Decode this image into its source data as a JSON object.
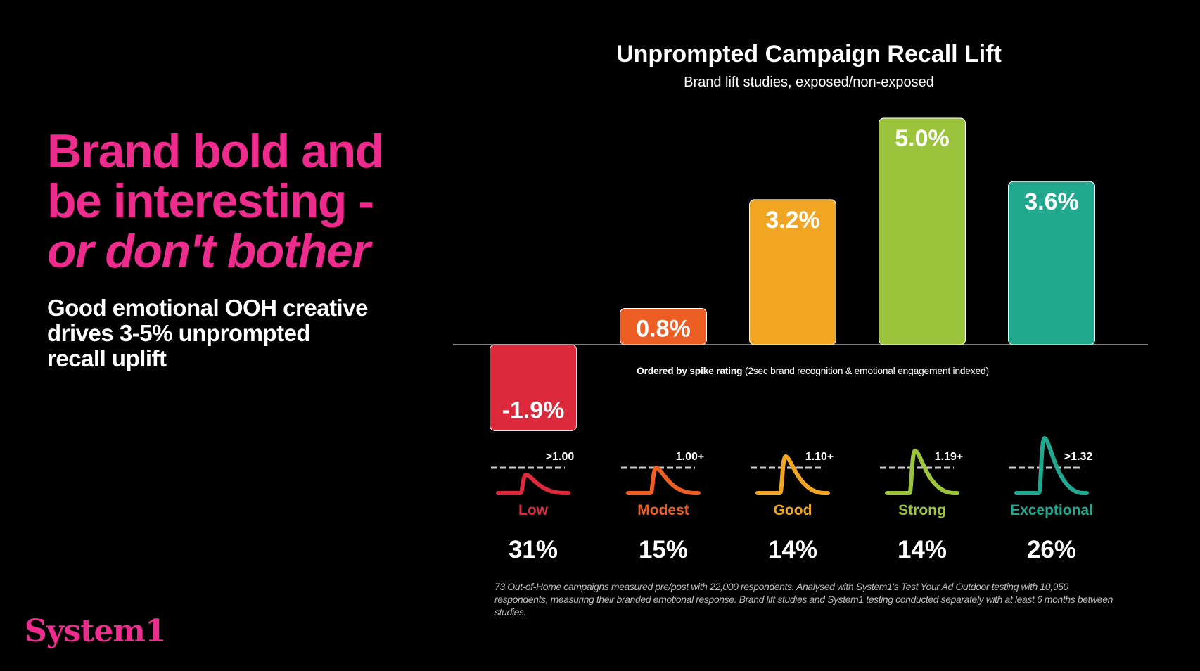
{
  "headline": {
    "line1": "Brand bold and",
    "line2": "be interesting -",
    "line3": "or don't bother"
  },
  "subheadline": {
    "line1": "Good emotional OOH creative",
    "line2": "drives 3-5% unprompted",
    "line3": "recall uplift"
  },
  "logo": "System1",
  "footnote": "73 Out-of-Home campaigns measured pre/post with 22,000 respondents. Analysed with System1's Test Your Ad Outdoor testing with 10,950 respondents, measuring their branded emotional response. Brand lift studies and System1 testing conducted separately with at least 6 months between studies.",
  "order_note": {
    "bold": "Ordered by spike rating",
    "rest": " (2sec brand recognition & emotional engagement indexed)"
  },
  "chart_data": {
    "type": "bar",
    "title": "Unprompted Campaign Recall Lift",
    "subtitle": "Brand lift studies, exposed/non-exposed",
    "categories": [
      "Low",
      "Modest",
      "Good",
      "Strong",
      "Exceptional"
    ],
    "values": [
      -1.9,
      0.8,
      3.2,
      5.0,
      3.6
    ],
    "value_labels": [
      "-1.9%",
      "0.8%",
      "3.2%",
      "5.0%",
      "3.6%"
    ],
    "spike_thresholds": [
      ">1.00",
      "1.00+",
      "1.10+",
      "1.19+",
      ">1.32"
    ],
    "share_of_campaigns": [
      "31%",
      "15%",
      "14%",
      "14%",
      "26%"
    ],
    "colors": [
      "#dc2a3c",
      "#ec5e23",
      "#f0a623",
      "#9bc43c",
      "#21a88f"
    ],
    "unit": "%",
    "grid": false
  }
}
